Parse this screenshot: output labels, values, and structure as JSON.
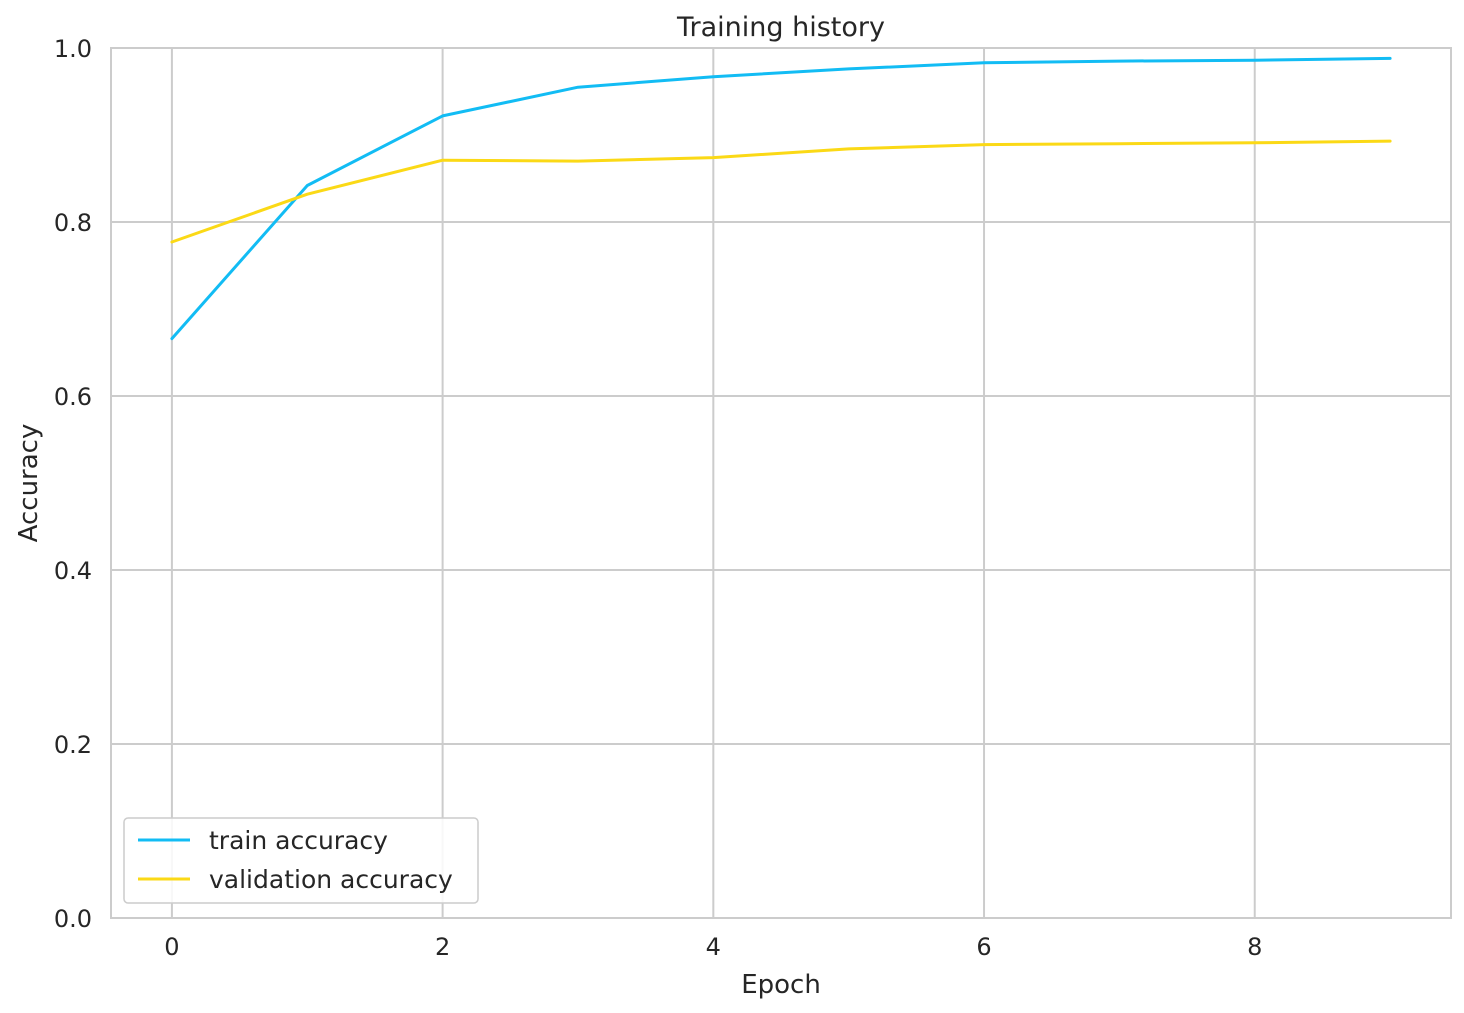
{
  "chart_data": {
    "type": "line",
    "title": "Training history",
    "xlabel": "Epoch",
    "ylabel": "Accuracy",
    "x": [
      0,
      1,
      2,
      3,
      4,
      5,
      6,
      7,
      8,
      9
    ],
    "xlim": [
      -0.45,
      9.45
    ],
    "ylim": [
      0.0,
      1.0
    ],
    "xticks": [
      0,
      2,
      4,
      6,
      8
    ],
    "xtick_labels": [
      "0",
      "2",
      "4",
      "6",
      "8"
    ],
    "yticks": [
      0.0,
      0.2,
      0.4,
      0.6,
      0.8,
      1.0
    ],
    "ytick_labels": [
      "0.0",
      "0.2",
      "0.4",
      "0.6",
      "0.8",
      "1.0"
    ],
    "grid": true,
    "legend_position": "lower-left",
    "series": [
      {
        "name": "train accuracy",
        "color": "#12bcf4",
        "values": [
          0.666,
          0.842,
          0.922,
          0.955,
          0.967,
          0.976,
          0.983,
          0.985,
          0.986,
          0.988
        ]
      },
      {
        "name": "validation accuracy",
        "color": "#fbd916",
        "values": [
          0.777,
          0.832,
          0.871,
          0.87,
          0.874,
          0.884,
          0.889,
          0.89,
          0.891,
          0.893
        ]
      }
    ]
  }
}
